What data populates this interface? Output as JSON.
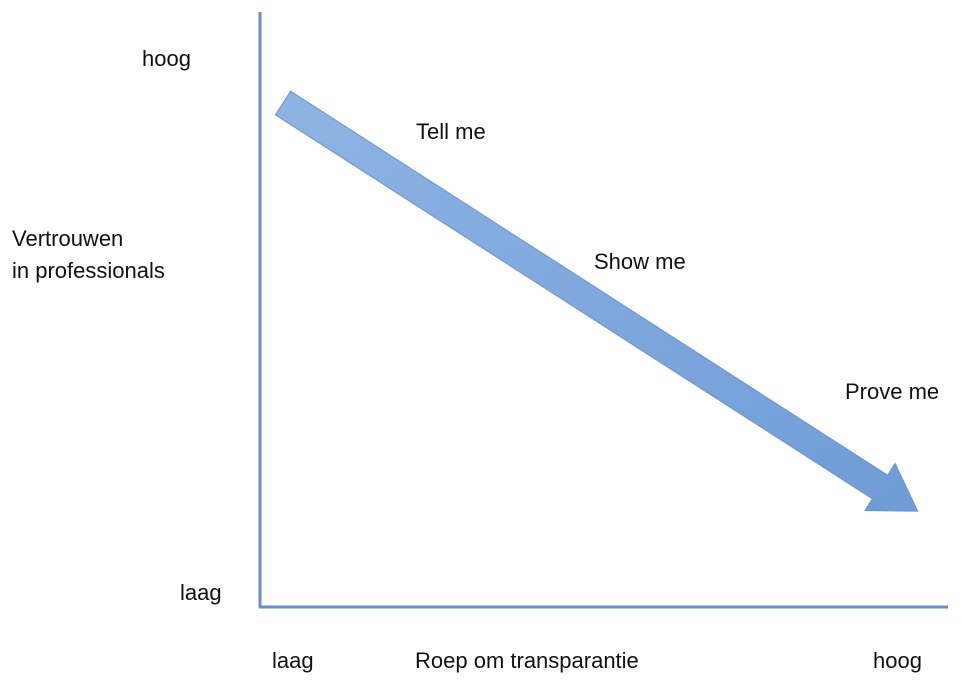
{
  "y_axis": {
    "label": [
      "Vertrouwen",
      "in professionals"
    ],
    "high": "hoog",
    "low": "laag"
  },
  "x_axis": {
    "label": "Roep om transparantie",
    "low": "laag",
    "high": "hoog"
  },
  "stages": [
    "Tell me",
    "Show me",
    "Prove me"
  ]
}
